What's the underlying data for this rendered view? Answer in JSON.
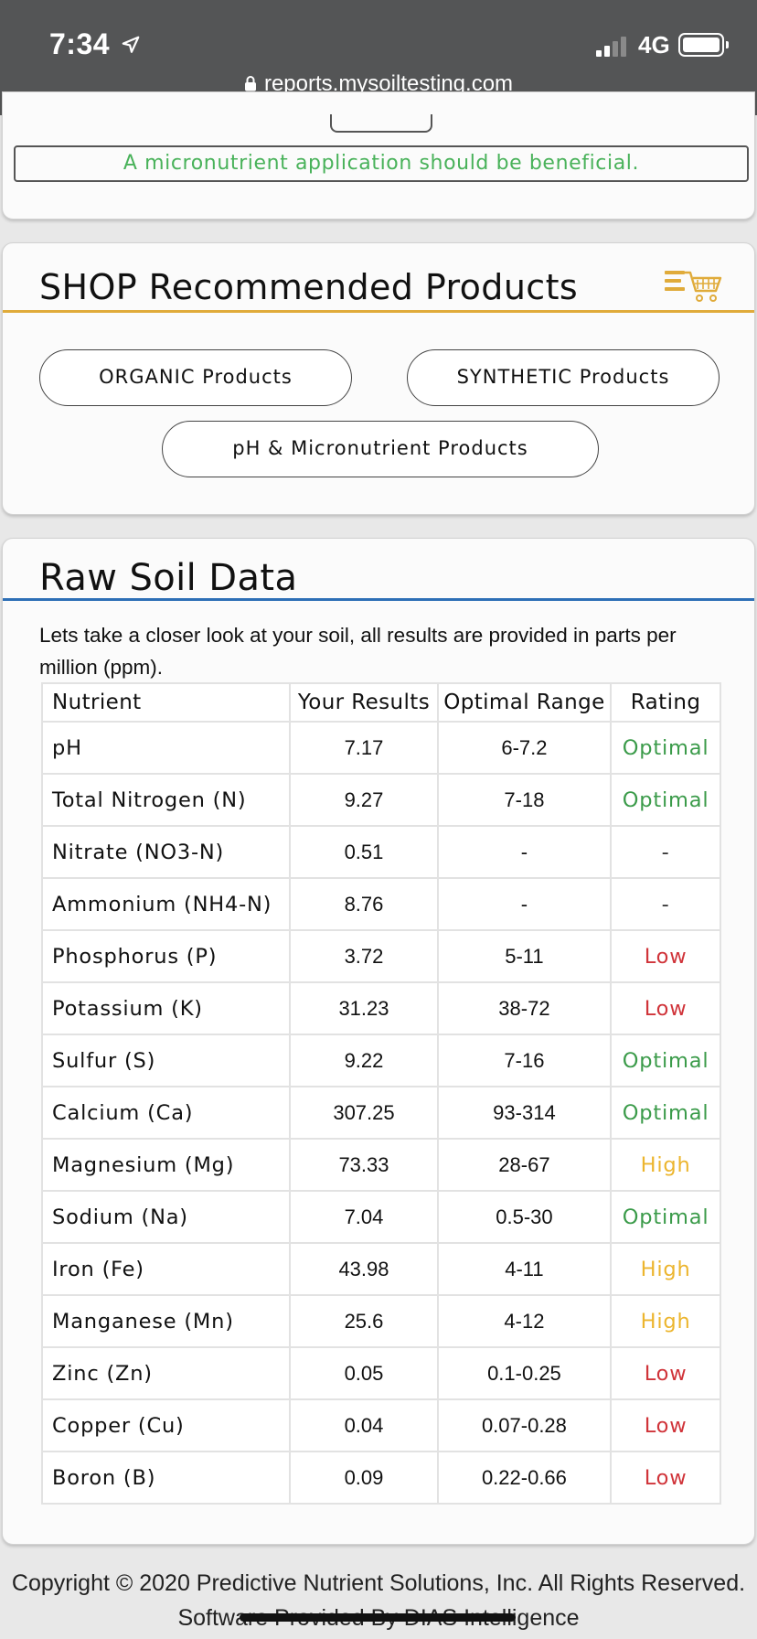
{
  "status_bar": {
    "time": "7:34",
    "network": "4G",
    "icons": [
      "location-arrow-icon",
      "signal-bars-icon",
      "battery-icon"
    ]
  },
  "browser": {
    "url": "reports.mysoiltesting.com",
    "icons": [
      "lock-icon"
    ]
  },
  "notice": {
    "text": "A micronutrient application should be beneficial."
  },
  "shop": {
    "title": "SHOP Recommended Products",
    "icon": "menu-cart-icon",
    "buttons": {
      "organic": "ORGANIC Products",
      "synthetic": "SYNTHETIC Products",
      "ph": "pH & Micronutrient Products"
    }
  },
  "raw": {
    "title": "Raw Soil Data",
    "intro": "Lets take a closer look at your soil, all results are provided in parts per million (ppm).",
    "headers": [
      "Nutrient",
      "Your Results",
      "Optimal Range",
      "Rating"
    ],
    "rows": [
      {
        "nutrient": "pH",
        "result": "7.17",
        "range": "6-7.2",
        "rating": "Optimal",
        "status": "optimal"
      },
      {
        "nutrient": "Total Nitrogen (N)",
        "result": "9.27",
        "range": "7-18",
        "rating": "Optimal",
        "status": "optimal"
      },
      {
        "nutrient": "Nitrate (NO3-N)",
        "result": "0.51",
        "range": "-",
        "rating": "-",
        "status": "none"
      },
      {
        "nutrient": "Ammonium (NH4-N)",
        "result": "8.76",
        "range": "-",
        "rating": "-",
        "status": "none"
      },
      {
        "nutrient": "Phosphorus (P)",
        "result": "3.72",
        "range": "5-11",
        "rating": "Low",
        "status": "low"
      },
      {
        "nutrient": "Potassium (K)",
        "result": "31.23",
        "range": "38-72",
        "rating": "Low",
        "status": "low"
      },
      {
        "nutrient": "Sulfur (S)",
        "result": "9.22",
        "range": "7-16",
        "rating": "Optimal",
        "status": "optimal"
      },
      {
        "nutrient": "Calcium (Ca)",
        "result": "307.25",
        "range": "93-314",
        "rating": "Optimal",
        "status": "optimal"
      },
      {
        "nutrient": "Magnesium (Mg)",
        "result": "73.33",
        "range": "28-67",
        "rating": "High",
        "status": "high"
      },
      {
        "nutrient": "Sodium (Na)",
        "result": "7.04",
        "range": "0.5-30",
        "rating": "Optimal",
        "status": "optimal"
      },
      {
        "nutrient": "Iron (Fe)",
        "result": "43.98",
        "range": "4-11",
        "rating": "High",
        "status": "high"
      },
      {
        "nutrient": "Manganese (Mn)",
        "result": "25.6",
        "range": "4-12",
        "rating": "High",
        "status": "high"
      },
      {
        "nutrient": "Zinc (Zn)",
        "result": "0.05",
        "range": "0.1-0.25",
        "rating": "Low",
        "status": "low"
      },
      {
        "nutrient": "Copper (Cu)",
        "result": "0.04",
        "range": "0.07-0.28",
        "rating": "Low",
        "status": "low"
      },
      {
        "nutrient": "Boron (B)",
        "result": "0.09",
        "range": "0.22-0.66",
        "rating": "Low",
        "status": "low"
      }
    ]
  },
  "footer": {
    "line1": "Copyright © 2020 Predictive Nutrient Solutions, Inc. All Rights Reserved.",
    "line2": "Software Provided By DIAS Intelligence"
  },
  "colors": {
    "status_bar": "#545556",
    "notice_text": "#49b25a",
    "shop_rule": "#e0ab3a",
    "raw_rule": "#2d6fb6",
    "optimal": "#3b9b4a",
    "low": "#d0343a",
    "high": "#ecb52e"
  }
}
